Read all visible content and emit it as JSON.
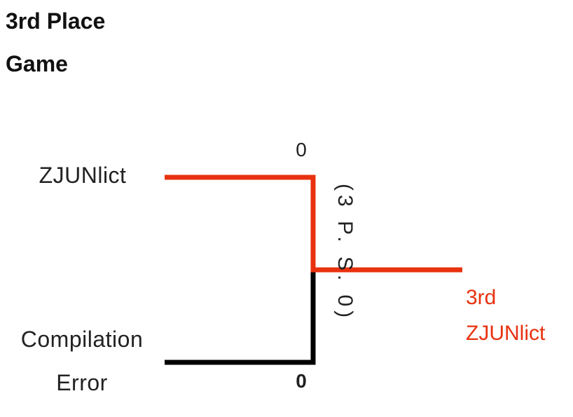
{
  "title": "3rd Place Game",
  "match": {
    "teams": [
      {
        "name": "ZJUNlict",
        "score": "0"
      },
      {
        "name": "Compilation Error",
        "score": "0"
      }
    ],
    "note": "(3 P. S. 0)",
    "result": {
      "place": "3rd",
      "team": "ZJUNlict"
    }
  }
}
